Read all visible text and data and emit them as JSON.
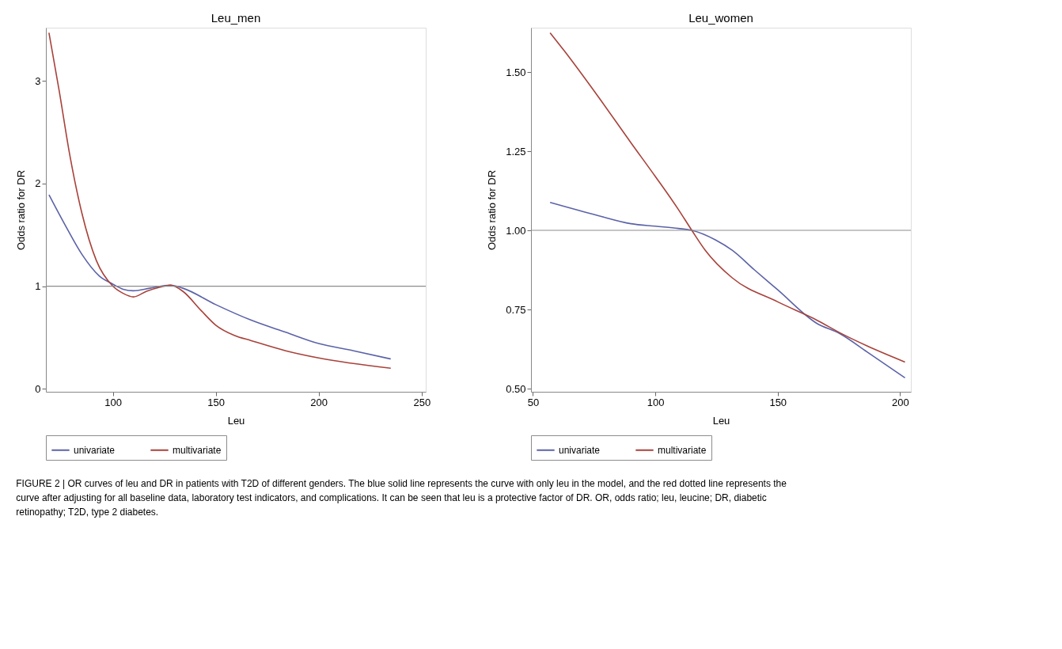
{
  "chart_data": [
    {
      "type": "line",
      "title": "Leu_men",
      "xlabel": "Leu",
      "ylabel": "Odds ratio for DR",
      "xlim": [
        67.5,
        252
      ],
      "ylim": [
        -0.03,
        3.52
      ],
      "xticks": [
        100,
        150,
        200,
        250
      ],
      "yticks": [
        0,
        1,
        2,
        3
      ],
      "grid": false,
      "legend": "bottom",
      "line_style": "solid",
      "ref_lines": [
        {
          "axis": "y",
          "value": 1,
          "color": "#8c8c8c"
        }
      ],
      "series": [
        {
          "name": "univariate",
          "color": "#5b62a8",
          "x": [
            69,
            77,
            85,
            93.4,
            100,
            105,
            110,
            118,
            128,
            134,
            150,
            167,
            184,
            200,
            217,
            235
          ],
          "values": [
            1.89,
            1.59,
            1.31,
            1.1,
            1.02,
            0.97,
            0.955,
            0.98,
            1.01,
            0.98,
            0.82,
            0.67,
            0.55,
            0.44,
            0.37,
            0.29
          ]
        },
        {
          "name": "multivariate",
          "color": "#a8413a",
          "x": [
            69,
            74,
            79,
            85,
            92,
            100,
            105,
            110,
            116.4,
            123,
            128,
            134,
            143,
            150,
            159,
            167,
            184,
            200,
            235
          ],
          "values": [
            3.47,
            2.9,
            2.29,
            1.71,
            1.25,
            1.0,
            0.93,
            0.895,
            0.95,
            0.99,
            1.01,
            0.95,
            0.76,
            0.62,
            0.52,
            0.47,
            0.37,
            0.3,
            0.2
          ]
        }
      ],
      "annotations": [
        "FIGURE 2 | OR curves of leu and DR in patients with T2D of different genders. The blue solid line represents the curve with only leu in the model, and the red dotted line represents the curve after adjusting for all baseline data, laboratory test indicators, and complications. It can be seen that leu is a protective factor of DR. OR, odds ratio; leu, leucine; DR, diabetic retinopathy; T2D, type 2 diabetes."
      ]
    },
    {
      "type": "line",
      "title": "Leu_women",
      "xlabel": "Leu",
      "ylabel": "Odds ratio for DR",
      "xlim": [
        49.2,
        204.4
      ],
      "ylim": [
        0.49,
        1.64
      ],
      "xticks": [
        50,
        100,
        150,
        200
      ],
      "yticks": [
        {
          "value": 0.5,
          "label": "0.50"
        },
        {
          "value": 0.75,
          "label": "0.75"
        },
        {
          "value": 1.0,
          "label": "1.00"
        },
        {
          "value": 1.25,
          "label": "1.25"
        },
        {
          "value": 1.5,
          "label": "1.50"
        }
      ],
      "grid": false,
      "legend": "bottom",
      "line_style": "solid",
      "ref_lines": [
        {
          "axis": "y",
          "value": 1,
          "color": "#8c8c8c"
        }
      ],
      "series": [
        {
          "name": "univariate",
          "color": "#5b62a8",
          "x": [
            57,
            76.4,
            90,
            100,
            109.4,
            114.9,
            124.5,
            131.4,
            140.5,
            150,
            165.8,
            175.5,
            186.5,
            202
          ],
          "values": [
            1.088,
            1.047,
            1.021,
            1.013,
            1.006,
            1.0,
            0.97,
            0.937,
            0.875,
            0.812,
            0.707,
            0.673,
            0.616,
            0.534
          ]
        },
        {
          "name": "multivariate",
          "color": "#a8413a",
          "x": [
            57,
            62.7,
            76.4,
            90,
            100,
            109.4,
            114.9,
            120.4,
            131.4,
            150,
            165.8,
            175.5,
            186.5,
            202
          ],
          "values": [
            1.624,
            1.568,
            1.425,
            1.277,
            1.17,
            1.066,
            1.0,
            0.937,
            0.85,
            0.774,
            0.717,
            0.676,
            0.635,
            0.584
          ]
        }
      ]
    }
  ]
}
